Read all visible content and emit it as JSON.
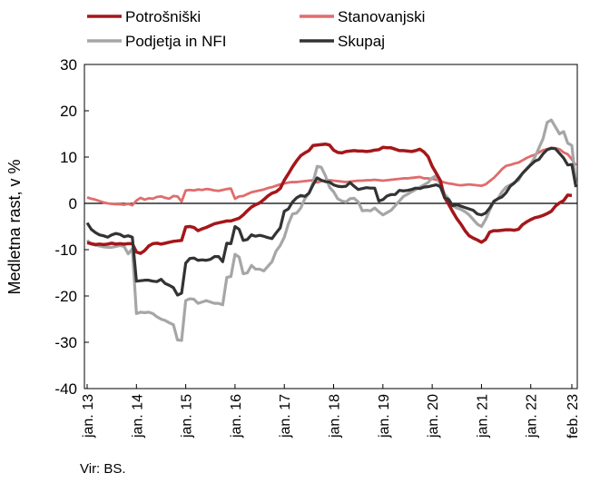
{
  "chart_data": {
    "type": "line",
    "ylabel": "Medletna rast, v %",
    "ylim": [
      -40,
      30
    ],
    "yticks": [
      30,
      20,
      10,
      0,
      -10,
      -20,
      -30,
      -40
    ],
    "x_start": "jan. 13",
    "x_end": "feb. 23",
    "xticks": [
      "jan. 13",
      "jan. 14",
      "jan. 15",
      "jan. 16",
      "jan. 17",
      "jan. 18",
      "jan. 19",
      "jan. 20",
      "jan. 21",
      "jan. 22",
      "feb. 23"
    ],
    "legend_position": "top",
    "series": [
      {
        "name": "Potrošniški",
        "color": "#a5161a",
        "values": [
          -8.5,
          -8.7,
          -8.9,
          -8.8,
          -8.9,
          -8.8,
          -8.6,
          -8.8,
          -8.7,
          -8.8,
          -8.7,
          -8.7,
          -10.5,
          -10.8,
          -10.2,
          -9.2,
          -8.7,
          -8.6,
          -8.8,
          -8.6,
          -8.4,
          -8.2,
          -8.1,
          -8.0,
          -5.1,
          -5.0,
          -5.2,
          -5.9,
          -5.5,
          -5.2,
          -4.8,
          -4.4,
          -4.2,
          -4.0,
          -3.8,
          -3.8,
          -3.5,
          -3.2,
          -2.5,
          -1.6,
          -0.8,
          -0.3,
          0.1,
          0.8,
          1.6,
          2.2,
          2.5,
          3.2,
          5.0,
          6.4,
          7.9,
          9.2,
          10.3,
          10.9,
          11.4,
          12.5,
          12.6,
          12.7,
          12.8,
          12.6,
          11.5,
          11.0,
          10.9,
          11.2,
          11.3,
          11.4,
          11.3,
          11.3,
          11.2,
          11.3,
          11.5,
          11.6,
          12.1,
          12.0,
          12.0,
          11.7,
          11.4,
          11.4,
          11.3,
          11.2,
          11.4,
          11.7,
          11.1,
          10.1,
          8.0,
          6.5,
          4.9,
          1.3,
          -0.2,
          -1.8,
          -3.3,
          -4.5,
          -5.9,
          -7.0,
          -7.5,
          -7.9,
          -8.4,
          -7.8,
          -6.2,
          -5.9,
          -5.9,
          -5.8,
          -5.7,
          -5.7,
          -5.8,
          -5.6,
          -4.6,
          -4.0,
          -3.5,
          -3.1,
          -2.9,
          -2.6,
          -2.2,
          -1.7,
          -0.6,
          0.1,
          0.6,
          1.8,
          1.7
        ]
      },
      {
        "name": "Stanovanjski",
        "color": "#e06c6c",
        "values": [
          1.3,
          1.0,
          0.8,
          0.5,
          0.2,
          0.0,
          -0.1,
          -0.2,
          -0.2,
          -0.3,
          -0.1,
          -0.4,
          0.6,
          1.2,
          0.8,
          1.1,
          1.0,
          1.4,
          1.5,
          1.2,
          1.0,
          1.6,
          1.5,
          0.4,
          2.8,
          2.9,
          2.8,
          3.0,
          2.9,
          3.1,
          3.0,
          2.8,
          2.7,
          2.9,
          3.1,
          3.2,
          1.0,
          1.5,
          1.6,
          2.0,
          2.4,
          2.6,
          2.8,
          3.0,
          3.3,
          3.5,
          3.8,
          4.1,
          4.3,
          4.5,
          4.6,
          4.6,
          4.7,
          4.8,
          4.9,
          5.0,
          4.5,
          4.8,
          4.9,
          5.0,
          4.9,
          4.8,
          4.7,
          4.6,
          4.7,
          4.8,
          4.9,
          4.9,
          5.0,
          5.0,
          5.1,
          5.0,
          4.9,
          5.0,
          5.1,
          5.2,
          5.3,
          5.4,
          5.4,
          5.5,
          5.6,
          5.7,
          5.4,
          5.4,
          5.3,
          5.1,
          4.8,
          4.5,
          4.3,
          4.2,
          4.0,
          3.9,
          4.0,
          4.1,
          4.0,
          3.9,
          3.8,
          4.1,
          4.8,
          5.5,
          6.4,
          7.4,
          8.1,
          8.3,
          8.6,
          8.8,
          9.3,
          9.8,
          10.2,
          10.5,
          11.0,
          11.5,
          11.7,
          12.0,
          11.9,
          11.7,
          11.0,
          10.6,
          9.5,
          8.2
        ]
      },
      {
        "name": "Podjetja in NFI",
        "color": "#a6a6a6",
        "values": [
          -8.0,
          -8.8,
          -9.0,
          -9.2,
          -9.4,
          -9.5,
          -9.5,
          -9.3,
          -9.1,
          -9.3,
          -10.9,
          -9.8,
          -23.8,
          -23.5,
          -23.6,
          -23.5,
          -23.8,
          -24.5,
          -25.0,
          -25.3,
          -25.8,
          -26.2,
          -29.5,
          -29.6,
          -21.0,
          -20.6,
          -20.7,
          -21.6,
          -21.3,
          -21.0,
          -21.3,
          -21.6,
          -21.6,
          -21.9,
          -16.0,
          -15.8,
          -11.0,
          -11.6,
          -15.2,
          -15.0,
          -13.4,
          -14.2,
          -14.2,
          -14.6,
          -13.6,
          -12.6,
          -10.3,
          -9.1,
          -7.3,
          -4.4,
          -2.3,
          -2.1,
          -1.0,
          1.0,
          2.2,
          4.5,
          8.0,
          7.8,
          6.0,
          3.5,
          2.5,
          1.0,
          0.5,
          0.3,
          1.0,
          1.1,
          0.3,
          -1.6,
          -1.5,
          -1.6,
          -1.0,
          -1.8,
          -2.5,
          -2.0,
          -1.5,
          -0.5,
          0.5,
          1.5,
          2.0,
          2.5,
          3.0,
          3.5,
          4.0,
          4.5,
          5.5,
          6.0,
          4.0,
          2.0,
          1.0,
          -0.5,
          -1.0,
          -1.3,
          -1.8,
          -2.5,
          -3.5,
          -4.5,
          -5.0,
          -3.5,
          -1.5,
          0.5,
          1.0,
          2.5,
          3.5,
          4.0,
          4.5,
          5.0,
          6.5,
          7.5,
          8.5,
          10.0,
          12.0,
          14.0,
          17.5,
          18.0,
          16.5,
          15.0,
          15.5,
          13.0,
          12.5,
          4.0
        ]
      },
      {
        "name": "Skupaj",
        "color": "#333333",
        "values": [
          -4.2,
          -5.6,
          -6.3,
          -6.8,
          -7.0,
          -7.3,
          -6.8,
          -6.5,
          -6.7,
          -7.2,
          -7.0,
          -7.3,
          -16.8,
          -16.7,
          -16.6,
          -16.6,
          -16.8,
          -16.9,
          -16.4,
          -17.3,
          -17.7,
          -18.2,
          -19.8,
          -19.4,
          -12.9,
          -11.9,
          -11.8,
          -12.3,
          -12.2,
          -12.3,
          -12.1,
          -11.5,
          -11.5,
          -12.6,
          -8.6,
          -8.7,
          -5.0,
          -5.6,
          -8.0,
          -7.8,
          -6.8,
          -7.1,
          -6.9,
          -7.1,
          -7.4,
          -7.6,
          -6.4,
          -5.3,
          -1.7,
          -1.2,
          0.3,
          1.2,
          1.7,
          1.5,
          2.2,
          4.0,
          5.5,
          5.0,
          4.7,
          4.6,
          4.0,
          3.7,
          3.6,
          3.7,
          4.5,
          3.7,
          3.0,
          3.2,
          3.4,
          3.3,
          3.3,
          0.5,
          0.8,
          1.6,
          1.9,
          1.9,
          2.8,
          2.7,
          2.8,
          3.0,
          3.3,
          3.2,
          3.5,
          3.6,
          3.8,
          4.0,
          3.6,
          1.3,
          0.8,
          -0.5,
          -0.3,
          -0.6,
          -0.9,
          -1.2,
          -1.5,
          -2.3,
          -2.5,
          -2.1,
          -1.0,
          0.4,
          1.0,
          1.4,
          2.3,
          3.7,
          4.4,
          5.4,
          6.5,
          7.4,
          8.3,
          9.1,
          9.5,
          10.7,
          11.6,
          11.9,
          11.8,
          10.8,
          9.8,
          8.3,
          8.4,
          3.5
        ]
      }
    ]
  },
  "source": "Vir: BS."
}
